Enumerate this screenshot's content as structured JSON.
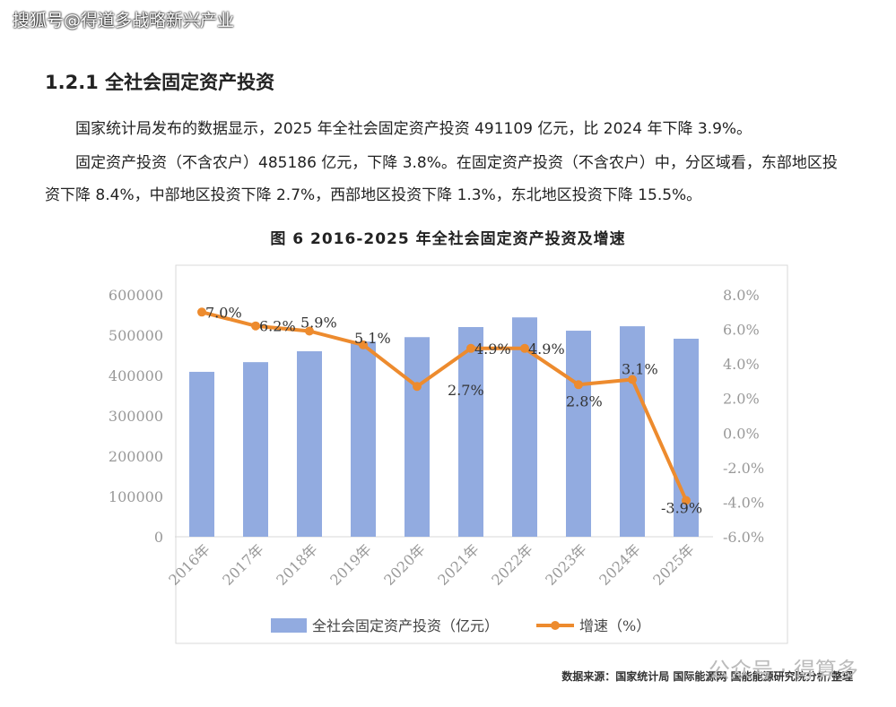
{
  "watermark": "搜狐号@得道多战略新兴产业",
  "heading": "1.2.1 全社会固定资产投资",
  "paragraphs": [
    "国家统计局发布的数据显示，2025 年全社会固定资产投资 491109 亿元，比 2024 年下降 3.9%。",
    "固定资产投资（不含农户）485186 亿元，下降 3.8%。在固定资产投资（不含农户）中，分区域看，东部地区投资下降 8.4%，中部地区投资下降 2.7%，西部地区投资下降 1.3%，东北地区投资下降 15.5%。"
  ],
  "figure_caption": "图 6 2016-2025 年全社会固定资产投资及增速",
  "chart_data": {
    "type": "bar_line",
    "categories": [
      "2016年",
      "2017年",
      "2018年",
      "2019年",
      "2020年",
      "2021年",
      "2022年",
      "2023年",
      "2024年",
      "2025年"
    ],
    "series": [
      {
        "name": "全社会固定资产投资（亿元）",
        "type": "bar",
        "color": "#92abe0",
        "values": [
          409000,
          433000,
          460000,
          484000,
          495000,
          520000,
          544000,
          511000,
          522000,
          491109
        ]
      },
      {
        "name": "增速（%）",
        "type": "line",
        "axis": "y2",
        "color": "#ed8b2e",
        "values": [
          7.0,
          6.2,
          5.9,
          5.1,
          2.7,
          4.9,
          4.9,
          2.8,
          3.1,
          -3.9
        ],
        "value_labels": [
          "7.0%",
          "6.2%",
          "5.9%",
          "5.1%",
          "2.7%",
          "4.9%",
          "4.9%",
          "2.8%",
          "3.1%",
          "-3.9%"
        ]
      }
    ],
    "ylim": [
      0,
      600000
    ],
    "yticks": [
      0,
      100000,
      200000,
      300000,
      400000,
      500000,
      600000
    ],
    "y2lim": [
      -6,
      8
    ],
    "y2ticks": [
      {
        "value": -6,
        "label": "-6.0%"
      },
      {
        "value": -4,
        "label": "-4.0%"
      },
      {
        "value": -2,
        "label": "-2.0%"
      },
      {
        "value": 0,
        "label": "0.0%"
      },
      {
        "value": 2,
        "label": "2.0%"
      },
      {
        "value": 4,
        "label": "4.0%"
      },
      {
        "value": 6,
        "label": "6.0%"
      },
      {
        "value": 8,
        "label": "8.0%"
      }
    ],
    "legend": "bottom"
  },
  "source": "数据来源：国家统计局 国际能源网 国能能源研究院分析/整理",
  "watermark2": "公众号 · 得算多"
}
